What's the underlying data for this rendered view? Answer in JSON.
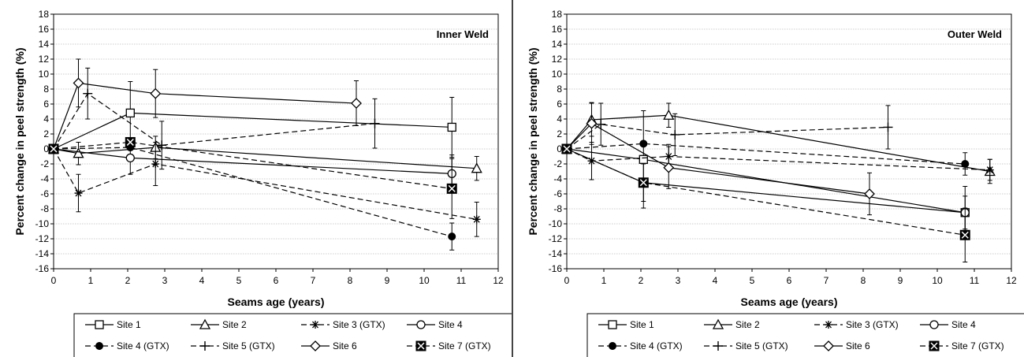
{
  "chart_data": [
    {
      "type": "line",
      "title": "Inner Weld",
      "xlabel": "Seams age (years)",
      "ylabel": "Percent change in peel strength (%)",
      "xlim": [
        0,
        12
      ],
      "ylim": [
        -16,
        18
      ],
      "xticks": [
        "0",
        "1",
        "2",
        "3",
        "4",
        "5",
        "6",
        "7",
        "8",
        "9",
        "10",
        "11",
        "12"
      ],
      "yticks": [
        "-16",
        "-14",
        "-12",
        "-10",
        "-8",
        "-6",
        "-4",
        "-2",
        "0",
        "2",
        "4",
        "6",
        "8",
        "10",
        "12",
        "14",
        "16",
        "18"
      ],
      "grid": true,
      "legend": "bottom",
      "series": [
        {
          "name": "Site 1",
          "marker": "square",
          "dash": "solid",
          "points": [
            [
              0,
              0
            ],
            [
              2.07,
              4.8
            ],
            [
              10.75,
              2.9
            ]
          ],
          "err": [
            0,
            4.2,
            4.0
          ]
        },
        {
          "name": "Site 2",
          "marker": "triangle",
          "dash": "solid",
          "points": [
            [
              0,
              0
            ],
            [
              0.67,
              -0.6
            ],
            [
              2.75,
              0.2
            ],
            [
              11.42,
              -2.6
            ]
          ],
          "err": [
            0,
            1.5,
            1.5,
            1.6
          ]
        },
        {
          "name": "Site 3 (GTX)",
          "marker": "asterisk",
          "dash": "dashed",
          "points": [
            [
              0,
              0
            ],
            [
              0.67,
              -5.9
            ],
            [
              2.75,
              -2.0
            ],
            [
              11.42,
              -9.4
            ]
          ],
          "err": [
            0,
            2.5,
            2.9,
            2.3
          ]
        },
        {
          "name": "Site 4",
          "marker": "circle",
          "dash": "solid",
          "points": [
            [
              0,
              0
            ],
            [
              2.07,
              -1.2
            ],
            [
              10.75,
              -3.3
            ]
          ],
          "err": [
            0,
            2.2,
            2.5
          ]
        },
        {
          "name": "Site 4 (GTX)",
          "marker": "dot",
          "dash": "dashed",
          "points": [
            [
              0,
              0
            ],
            [
              2.07,
              0.2
            ],
            [
              10.75,
              -11.7
            ]
          ],
          "err": [
            0,
            0,
            1.8
          ]
        },
        {
          "name": "Site 5 (GTX)",
          "marker": "plus",
          "dash": "dashed",
          "points": [
            [
              0,
              0
            ],
            [
              0.92,
              7.4
            ],
            [
              2.92,
              0.5
            ],
            [
              8.67,
              3.4
            ]
          ],
          "err": [
            0,
            3.4,
            3.2,
            3.3
          ]
        },
        {
          "name": "Site 6",
          "marker": "diamond",
          "dash": "solid",
          "points": [
            [
              0,
              0
            ],
            [
              0.67,
              8.8
            ],
            [
              2.75,
              7.4
            ],
            [
              8.17,
              6.1
            ]
          ],
          "err": [
            0,
            3.2,
            3.2,
            3.0
          ]
        },
        {
          "name": "Site 7 (GTX)",
          "marker": "xsquare",
          "dash": "dashed",
          "points": [
            [
              0,
              0
            ],
            [
              2.07,
              0.9
            ],
            [
              10.75,
              -5.3
            ]
          ],
          "err": [
            0,
            0,
            4.0
          ]
        }
      ]
    },
    {
      "type": "line",
      "title": "Outer Weld",
      "xlabel": "Seams age (years)",
      "ylabel": "Percent change in peel strength (%)",
      "xlim": [
        0,
        12
      ],
      "ylim": [
        -16,
        18
      ],
      "xticks": [
        "0",
        "1",
        "2",
        "3",
        "4",
        "5",
        "6",
        "7",
        "8",
        "9",
        "10",
        "11",
        "12"
      ],
      "yticks": [
        "-16",
        "-14",
        "-12",
        "-10",
        "-8",
        "-6",
        "-4",
        "-2",
        "0",
        "2",
        "4",
        "6",
        "8",
        "10",
        "12",
        "14",
        "16",
        "18"
      ],
      "grid": true,
      "legend": "bottom",
      "series": [
        {
          "name": "Site 1",
          "marker": "square",
          "dash": "solid",
          "points": [
            [
              0,
              0
            ],
            [
              2.07,
              -1.4
            ],
            [
              10.75,
              -8.5
            ]
          ],
          "err": [
            0,
            6.5,
            3.5
          ]
        },
        {
          "name": "Site 2",
          "marker": "triangle",
          "dash": "solid",
          "points": [
            [
              0,
              0
            ],
            [
              0.67,
              3.9
            ],
            [
              2.75,
              4.5
            ],
            [
              11.42,
              -3.0
            ]
          ],
          "err": [
            0,
            2.2,
            1.6,
            1.6
          ]
        },
        {
          "name": "Site 3 (GTX)",
          "marker": "asterisk",
          "dash": "dashed",
          "points": [
            [
              0,
              0
            ],
            [
              0.67,
              -1.6
            ],
            [
              2.75,
              -1.0
            ],
            [
              11.42,
              -2.8
            ]
          ],
          "err": [
            0,
            2.5,
            1.6,
            1.4
          ]
        },
        {
          "name": "Site 4",
          "marker": "circle",
          "dash": "solid",
          "points": [
            [
              0,
              0
            ],
            [
              2.07,
              -4.5
            ],
            [
              10.75,
              -8.5
            ]
          ],
          "err": [
            0,
            2.5,
            2.2
          ]
        },
        {
          "name": "Site 4 (GTX)",
          "marker": "dot",
          "dash": "dashed",
          "points": [
            [
              0,
              0
            ],
            [
              2.07,
              0.7
            ],
            [
              10.75,
              -2.0
            ]
          ],
          "err": [
            0,
            0,
            1.5
          ]
        },
        {
          "name": "Site 5 (GTX)",
          "marker": "plus",
          "dash": "dashed",
          "points": [
            [
              0,
              0
            ],
            [
              0.92,
              3.3
            ],
            [
              2.92,
              1.9
            ],
            [
              8.67,
              2.9
            ]
          ],
          "err": [
            0,
            2.8,
            2.8,
            2.9
          ]
        },
        {
          "name": "Site 6",
          "marker": "diamond",
          "dash": "solid",
          "points": [
            [
              0,
              0
            ],
            [
              0.67,
              3.4
            ],
            [
              2.75,
              -2.5
            ],
            [
              8.17,
              -6.0
            ]
          ],
          "err": [
            0,
            2.8,
            2.8,
            2.8
          ]
        },
        {
          "name": "Site 7 (GTX)",
          "marker": "xsquare",
          "dash": "dashed",
          "points": [
            [
              0,
              0
            ],
            [
              2.07,
              -4.5
            ],
            [
              10.75,
              -11.5
            ]
          ],
          "err": [
            0,
            0,
            3.6
          ]
        }
      ]
    }
  ]
}
